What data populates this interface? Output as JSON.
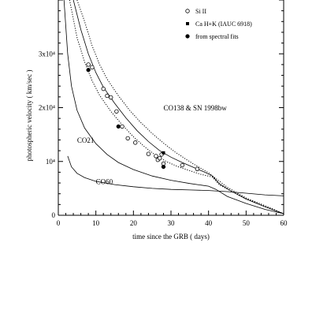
{
  "chart_data": {
    "type": "line",
    "xlabel": "time since the GRB ( days)",
    "ylabel": "photospheric velocity ( km/sec )",
    "xlim": [
      0,
      60
    ],
    "ylim": [
      0,
      40000
    ],
    "x_ticks": [
      0,
      10,
      20,
      30,
      40,
      50,
      60
    ],
    "y_ticks": [
      {
        "value": 0,
        "label": "0"
      },
      {
        "value": 10000,
        "label": "10⁴"
      },
      {
        "value": 20000,
        "label": "2x10⁴"
      },
      {
        "value": 30000,
        "label": "3x10⁴"
      }
    ],
    "legend": {
      "position": "top-right",
      "entries": [
        {
          "marker": "open-circle",
          "label": "Si II"
        },
        {
          "marker": "filled-square",
          "label": "Ca H+K (IAUC 6918)"
        },
        {
          "marker": "filled-circle",
          "label": "from spectral fits"
        }
      ]
    },
    "annotations": [
      {
        "text": "CO138 & SN 1998bw",
        "x": 28,
        "y": 19500
      },
      {
        "text": "CO21",
        "x": 5,
        "y": 13500
      },
      {
        "text": "CO60",
        "x": 10,
        "y": 5800
      }
    ],
    "curves": [
      {
        "id": "co138-main",
        "style": "solid",
        "points": [
          [
            4,
            40000
          ],
          [
            6,
            34500
          ],
          [
            8,
            30000
          ],
          [
            10,
            26500
          ],
          [
            12,
            23800
          ],
          [
            15,
            20800
          ],
          [
            18,
            18100
          ],
          [
            21,
            15700
          ],
          [
            24,
            13700
          ],
          [
            27,
            12000
          ],
          [
            30,
            10800
          ],
          [
            33,
            9800
          ],
          [
            36,
            8900
          ],
          [
            39,
            8000
          ],
          [
            41,
            7300
          ],
          [
            43,
            5800
          ],
          [
            46,
            4500
          ],
          [
            50,
            3000
          ],
          [
            55,
            1600
          ],
          [
            60,
            300
          ]
        ]
      },
      {
        "id": "co138-upper",
        "style": "dotted",
        "points": [
          [
            5,
            40000
          ],
          [
            7,
            36000
          ],
          [
            9,
            31500
          ],
          [
            11,
            28000
          ],
          [
            13,
            25300
          ],
          [
            16,
            22200
          ],
          [
            19,
            19500
          ],
          [
            22,
            17200
          ],
          [
            25,
            15200
          ],
          [
            28,
            13400
          ],
          [
            31,
            11800
          ],
          [
            34,
            10400
          ],
          [
            37,
            9100
          ],
          [
            40,
            7900
          ],
          [
            42,
            6800
          ],
          [
            45,
            5200
          ],
          [
            50,
            3200
          ],
          [
            55,
            1600
          ],
          [
            60,
            300
          ]
        ]
      },
      {
        "id": "co138-lower",
        "style": "dotted",
        "points": [
          [
            3,
            40000
          ],
          [
            5,
            33000
          ],
          [
            7,
            28500
          ],
          [
            9,
            25000
          ],
          [
            11,
            22300
          ],
          [
            14,
            19300
          ],
          [
            17,
            16800
          ],
          [
            20,
            14600
          ],
          [
            23,
            12700
          ],
          [
            26,
            11100
          ],
          [
            29,
            9900
          ],
          [
            32,
            9000
          ],
          [
            35,
            8300
          ],
          [
            38,
            7600
          ],
          [
            41,
            7100
          ],
          [
            43,
            5600
          ],
          [
            46,
            4500
          ],
          [
            50,
            3200
          ],
          [
            55,
            1800
          ],
          [
            60,
            300
          ]
        ]
      },
      {
        "id": "co21",
        "style": "solid",
        "points": [
          [
            1.5,
            40000
          ],
          [
            2.5,
            30000
          ],
          [
            3.5,
            24000
          ],
          [
            5,
            19500
          ],
          [
            7,
            16200
          ],
          [
            10,
            13300
          ],
          [
            13,
            11300
          ],
          [
            16,
            9800
          ],
          [
            20,
            8500
          ],
          [
            25,
            7300
          ],
          [
            30,
            6500
          ],
          [
            35,
            5900
          ],
          [
            40,
            5400
          ],
          [
            42,
            4800
          ],
          [
            45,
            3500
          ],
          [
            50,
            2200
          ],
          [
            55,
            1100
          ],
          [
            60,
            300
          ]
        ]
      },
      {
        "id": "co60",
        "style": "solid",
        "points": [
          [
            2.5,
            11000
          ],
          [
            3.5,
            9000
          ],
          [
            5,
            7800
          ],
          [
            7,
            7000
          ],
          [
            10,
            6300
          ],
          [
            15,
            5700
          ],
          [
            20,
            5300
          ],
          [
            25,
            5000
          ],
          [
            30,
            4800
          ],
          [
            35,
            4700
          ],
          [
            40,
            4600
          ],
          [
            45,
            4400
          ],
          [
            50,
            4100
          ],
          [
            55,
            3800
          ],
          [
            60,
            3600
          ]
        ]
      }
    ],
    "series": [
      {
        "marker": "open-circle",
        "points": [
          [
            8,
            28000
          ],
          [
            9,
            27500
          ],
          [
            12,
            23500
          ],
          [
            13,
            22200
          ],
          [
            14,
            21900
          ],
          [
            15.5,
            19300
          ],
          [
            17,
            16500
          ],
          [
            18.5,
            14300
          ],
          [
            20.5,
            13500
          ],
          [
            24,
            11400
          ],
          [
            26,
            11000
          ],
          [
            26.5,
            10300
          ],
          [
            27,
            10600
          ],
          [
            27.5,
            11300
          ],
          [
            28,
            9600
          ],
          [
            33,
            9300
          ],
          [
            37,
            8600
          ]
        ]
      },
      {
        "marker": "filled-square",
        "points": [
          [
            28,
            11600
          ]
        ]
      },
      {
        "marker": "filled-circle",
        "points": [
          [
            8,
            27000
          ],
          [
            16,
            16500
          ],
          [
            28,
            9000
          ]
        ]
      }
    ]
  }
}
